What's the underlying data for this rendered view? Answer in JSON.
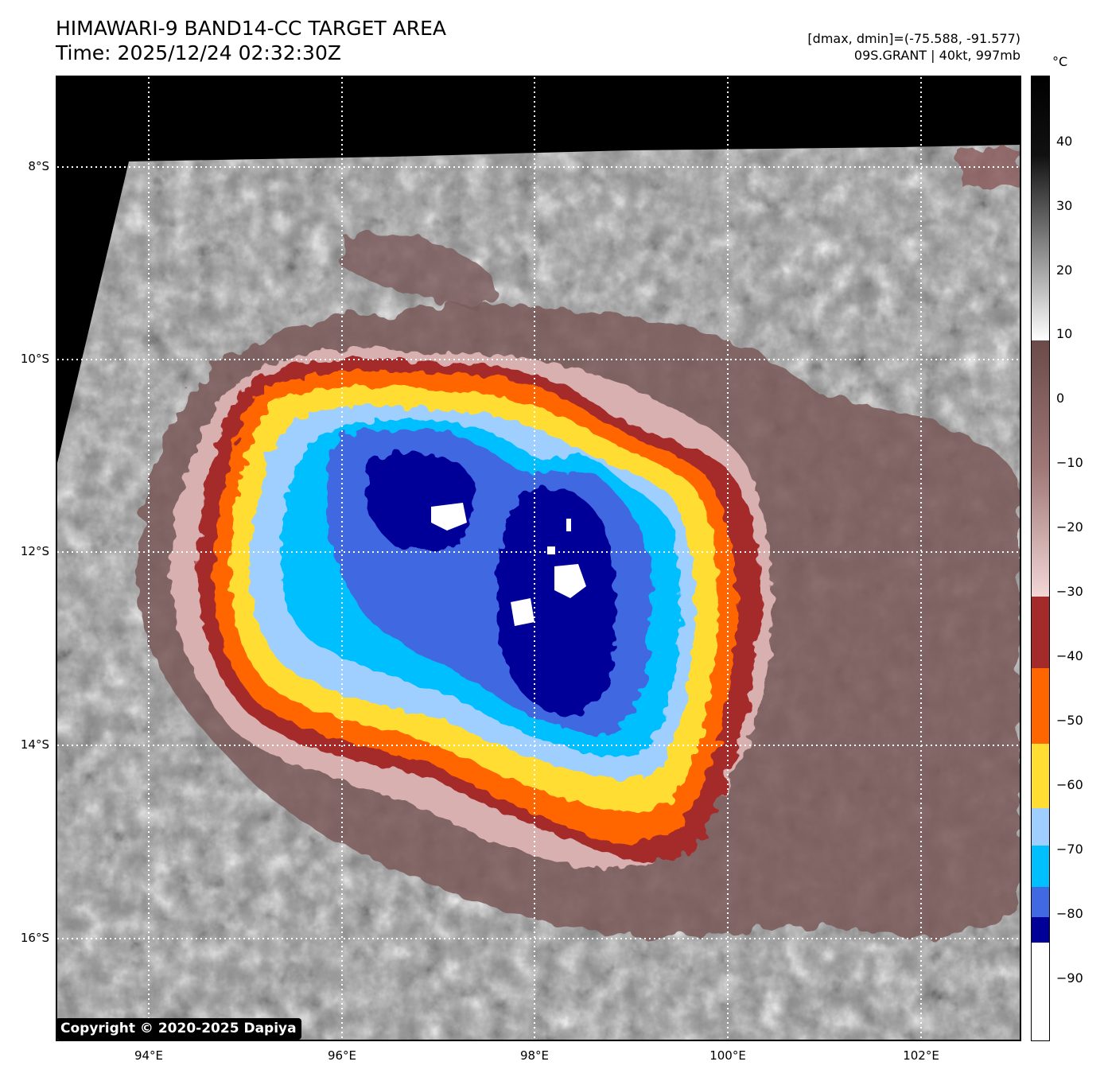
{
  "header": {
    "title_line1": "HIMAWARI-9 BAND14-CC TARGET AREA",
    "title_line2": "Time: 2025/12/24 02:32:30Z",
    "info_line1": "[dmax, dmin]=(-75.588, -91.577)",
    "info_line2": "09S.GRANT | 40kt, 997mb"
  },
  "map": {
    "lat_labels": [
      "8°S",
      "10°S",
      "12°S",
      "14°S",
      "16°S"
    ],
    "lon_labels": [
      "94°E",
      "96°E",
      "98°E",
      "100°E",
      "102°E"
    ],
    "copyright": "Copyright © 2020-2025 Dapiya"
  },
  "colorbar": {
    "unit": "°C",
    "labels": [
      "40",
      "30",
      "20",
      "10",
      "0",
      "−10",
      "−20",
      "−30",
      "−40",
      "−50",
      "−60",
      "−70",
      "−80",
      "−90"
    ],
    "colors": {
      "minus90_white": "#ffffff",
      "minus85_navy": "#000099",
      "minus80_blue": "#4169e1",
      "minus75_cyan": "#00bfff",
      "minus70_lightblue": "#9ecfff",
      "minus60_yellow": "#ffdd33",
      "minus50_orange": "#ff6600",
      "minus40_red": "#a52a2a",
      "minus30_pink": "#f3d6d6",
      "plus10_brown": "#6b4a4a"
    }
  }
}
